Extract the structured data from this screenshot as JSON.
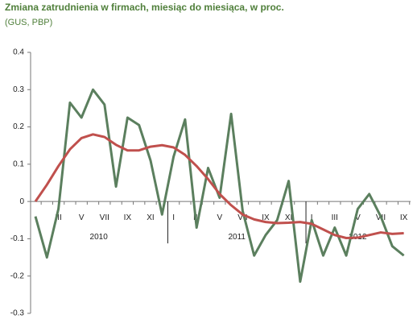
{
  "chart_data": {
    "type": "line",
    "title": "Zmiana zatrudnienia w firmach, miesiąc do miesiąca, w proc.",
    "subtitle": "(GUS, PBP)",
    "categories": [
      null,
      null,
      "III",
      null,
      "V",
      null,
      "VII",
      null,
      "IX",
      null,
      "XI",
      null,
      "I",
      null,
      "III",
      null,
      "V",
      null,
      "VII",
      null,
      "IX",
      null,
      "XI",
      null,
      "I",
      null,
      "III",
      null,
      "V",
      null,
      "VII",
      null,
      "IX"
    ],
    "years": [
      "2010",
      "2011",
      "2012"
    ],
    "series": [
      {
        "color": "#5b7f5e",
        "values": [
          -0.04,
          -0.15,
          -0.02,
          0.265,
          0.225,
          0.3,
          0.26,
          0.04,
          0.225,
          0.205,
          0.11,
          -0.035,
          0.12,
          0.22,
          -0.07,
          0.09,
          0.01,
          0.235,
          -0.025,
          -0.145,
          -0.09,
          -0.05,
          0.055,
          -0.215,
          -0.05,
          -0.145,
          -0.07,
          -0.145,
          -0.02,
          0.02,
          -0.04,
          -0.12,
          -0.145
        ]
      },
      {
        "color": "#c0504d",
        "values": [
          0.0,
          0.045,
          0.095,
          0.14,
          0.17,
          0.18,
          0.173,
          0.152,
          0.137,
          0.137,
          0.147,
          0.151,
          0.145,
          0.125,
          0.095,
          0.06,
          0.02,
          -0.01,
          -0.035,
          -0.048,
          -0.055,
          -0.058,
          -0.057,
          -0.055,
          -0.06,
          -0.075,
          -0.09,
          -0.098,
          -0.097,
          -0.09,
          -0.083,
          -0.087,
          -0.085
        ]
      }
    ],
    "ylim": [
      -0.3,
      0.4
    ],
    "yticks": [
      -0.3,
      -0.2,
      -0.1,
      0,
      0.1,
      0.2,
      0.3,
      0.4
    ],
    "grid": false
  }
}
